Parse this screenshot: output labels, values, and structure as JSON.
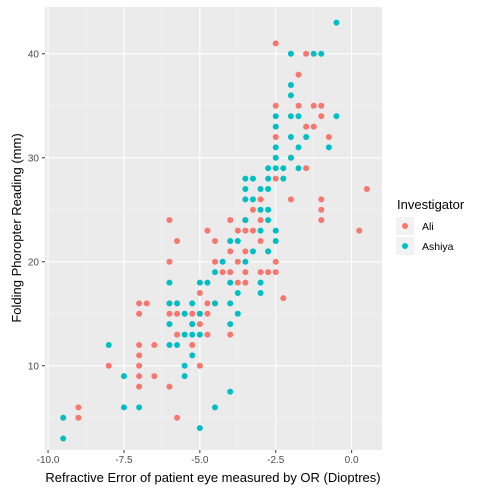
{
  "chart_data": {
    "type": "scatter",
    "xlabel": "Refractive Error of patient eye measured by OR (Dioptres)",
    "ylabel": "Folding Phoropter Reading (mm)",
    "xlim": [
      -10.1,
      1.0
    ],
    "ylim": [
      1.9,
      44.5
    ],
    "x_ticks": [
      -10.0,
      -7.5,
      -5.0,
      -2.5,
      0.0
    ],
    "x_tick_labels": [
      "-10.0",
      "-7.5",
      "-5.0",
      "-2.5",
      "0.0"
    ],
    "y_ticks": [
      10,
      20,
      30,
      40
    ],
    "y_tick_labels": [
      "10",
      "20",
      "30",
      "40"
    ],
    "grid": true,
    "legend": {
      "title": "Investigator",
      "position": "right"
    },
    "series": [
      {
        "name": "Ali",
        "color": "#f8766d",
        "points": [
          [
            -9.0,
            6
          ],
          [
            -9.0,
            5
          ],
          [
            -8.0,
            10
          ],
          [
            -7.0,
            16
          ],
          [
            -7.0,
            15
          ],
          [
            -7.0,
            12
          ],
          [
            -7.0,
            11
          ],
          [
            -7.0,
            10
          ],
          [
            -7.0,
            9
          ],
          [
            -7.0,
            8
          ],
          [
            -6.75,
            16
          ],
          [
            -6.5,
            12
          ],
          [
            -6.5,
            9
          ],
          [
            -6.0,
            24
          ],
          [
            -6.0,
            20
          ],
          [
            -6.0,
            16
          ],
          [
            -6.0,
            15
          ],
          [
            -6.0,
            8
          ],
          [
            -5.75,
            22
          ],
          [
            -5.75,
            16
          ],
          [
            -5.75,
            15
          ],
          [
            -5.75,
            13
          ],
          [
            -5.75,
            5
          ],
          [
            -5.5,
            15
          ],
          [
            -5.25,
            15
          ],
          [
            -5.25,
            14
          ],
          [
            -5.25,
            12
          ],
          [
            -5.0,
            17
          ],
          [
            -5.0,
            15
          ],
          [
            -5.0,
            14
          ],
          [
            -5.0,
            10
          ],
          [
            -4.75,
            23
          ],
          [
            -4.75,
            16
          ],
          [
            -4.75,
            15
          ],
          [
            -4.75,
            13
          ],
          [
            -4.5,
            22
          ],
          [
            -4.5,
            20
          ],
          [
            -4.5,
            16
          ],
          [
            -4.25,
            19
          ],
          [
            -4.0,
            24
          ],
          [
            -4.0,
            21
          ],
          [
            -4.0,
            19
          ],
          [
            -4.0,
            13
          ],
          [
            -3.75,
            23
          ],
          [
            -3.75,
            20
          ],
          [
            -3.75,
            18
          ],
          [
            -3.5,
            24
          ],
          [
            -3.5,
            23
          ],
          [
            -3.5,
            21
          ],
          [
            -3.5,
            19
          ],
          [
            -3.5,
            18
          ],
          [
            -3.25,
            25
          ],
          [
            -3.25,
            23
          ],
          [
            -3.0,
            26
          ],
          [
            -3.0,
            24
          ],
          [
            -3.0,
            22
          ],
          [
            -3.0,
            19
          ],
          [
            -2.75,
            21
          ],
          [
            -2.75,
            19
          ],
          [
            -2.5,
            41
          ],
          [
            -2.5,
            35
          ],
          [
            -2.5,
            32
          ],
          [
            -2.5,
            28
          ],
          [
            -2.5,
            20
          ],
          [
            -2.5,
            19
          ],
          [
            -2.25,
            16.5
          ],
          [
            -2.0,
            30
          ],
          [
            -2.0,
            26
          ],
          [
            -1.75,
            38
          ],
          [
            -1.75,
            35
          ],
          [
            -1.5,
            40
          ],
          [
            -1.5,
            33
          ],
          [
            -1.5,
            29
          ],
          [
            -1.25,
            35
          ],
          [
            -1.25,
            33
          ],
          [
            -1.0,
            35
          ],
          [
            -1.0,
            34
          ],
          [
            -1.0,
            26
          ],
          [
            -1.0,
            25
          ],
          [
            -1.0,
            24
          ],
          [
            -0.75,
            32
          ],
          [
            0.25,
            23
          ],
          [
            0.5,
            27
          ]
        ]
      },
      {
        "name": "Ashiya",
        "color": "#00bfc4",
        "points": [
          [
            -9.5,
            5
          ],
          [
            -9.5,
            3
          ],
          [
            -8.0,
            12
          ],
          [
            -7.5,
            9
          ],
          [
            -7.5,
            6
          ],
          [
            -7.0,
            6
          ],
          [
            -6.0,
            18
          ],
          [
            -6.0,
            16
          ],
          [
            -6.0,
            14
          ],
          [
            -6.0,
            12
          ],
          [
            -5.75,
            16
          ],
          [
            -5.75,
            12
          ],
          [
            -5.5,
            15
          ],
          [
            -5.5,
            13
          ],
          [
            -5.5,
            10
          ],
          [
            -5.5,
            9
          ],
          [
            -5.25,
            16
          ],
          [
            -5.25,
            14
          ],
          [
            -5.25,
            13
          ],
          [
            -5.25,
            11
          ],
          [
            -5.0,
            18
          ],
          [
            -5.0,
            15
          ],
          [
            -5.0,
            13
          ],
          [
            -5.0,
            4
          ],
          [
            -4.75,
            18
          ],
          [
            -4.5,
            19
          ],
          [
            -4.5,
            16
          ],
          [
            -4.5,
            6
          ],
          [
            -4.25,
            20
          ],
          [
            -4.0,
            22
          ],
          [
            -4.0,
            18
          ],
          [
            -4.0,
            16
          ],
          [
            -4.0,
            14
          ],
          [
            -4.0,
            7.5
          ],
          [
            -3.75,
            22
          ],
          [
            -3.75,
            17
          ],
          [
            -3.75,
            15
          ],
          [
            -3.5,
            28
          ],
          [
            -3.5,
            27
          ],
          [
            -3.5,
            26
          ],
          [
            -3.5,
            24
          ],
          [
            -3.5,
            20
          ],
          [
            -3.25,
            28
          ],
          [
            -3.25,
            26
          ],
          [
            -3.25,
            21
          ],
          [
            -3.0,
            27
          ],
          [
            -3.0,
            25
          ],
          [
            -3.0,
            23
          ],
          [
            -3.0,
            18
          ],
          [
            -3.0,
            17
          ],
          [
            -2.75,
            29
          ],
          [
            -2.75,
            28
          ],
          [
            -2.75,
            27
          ],
          [
            -2.75,
            25
          ],
          [
            -2.75,
            24
          ],
          [
            -2.75,
            21
          ],
          [
            -2.5,
            34
          ],
          [
            -2.5,
            33
          ],
          [
            -2.5,
            31
          ],
          [
            -2.5,
            30
          ],
          [
            -2.5,
            29
          ],
          [
            -2.5,
            23
          ],
          [
            -2.5,
            22
          ],
          [
            -2.25,
            29
          ],
          [
            -2.25,
            28
          ],
          [
            -2.0,
            40
          ],
          [
            -2.0,
            37
          ],
          [
            -2.0,
            36
          ],
          [
            -2.0,
            34
          ],
          [
            -2.0,
            32
          ],
          [
            -2.0,
            30
          ],
          [
            -1.75,
            34
          ],
          [
            -1.75,
            31
          ],
          [
            -1.75,
            29
          ],
          [
            -1.5,
            32
          ],
          [
            -1.25,
            40
          ],
          [
            -1.0,
            40
          ],
          [
            -0.75,
            31
          ],
          [
            -0.5,
            43
          ],
          [
            -0.5,
            34
          ]
        ]
      }
    ]
  }
}
